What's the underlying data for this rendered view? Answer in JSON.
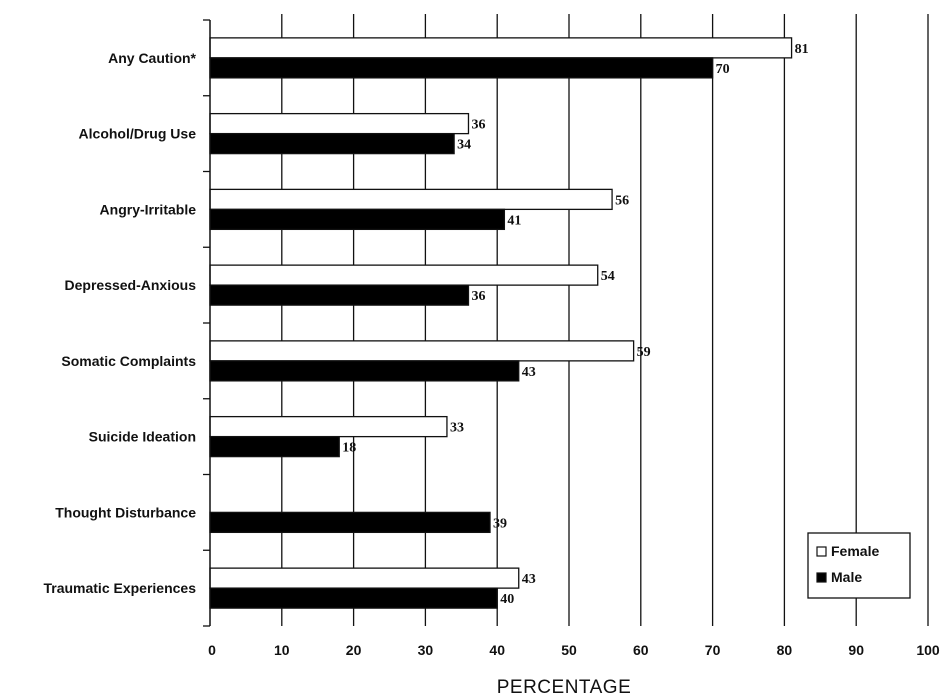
{
  "chart_data": {
    "type": "bar",
    "orientation": "horizontal",
    "title": "",
    "xlabel": "PERCENTAGE",
    "ylabel": "",
    "xlim": [
      0,
      100
    ],
    "x_ticks": [
      "0",
      "10",
      "20",
      "30",
      "40",
      "50",
      "60",
      "70",
      "80",
      "90",
      "100"
    ],
    "grid": "vertical",
    "legend_position": "bottom-right",
    "categories": [
      "Any Caution*",
      "Alcohol/Drug Use",
      "Angry-Irritable",
      "Depressed-Anxious",
      "Somatic Complaints",
      "Suicide Ideation",
      "Thought Disturbance",
      "Traumatic Experiences"
    ],
    "series": [
      {
        "name": "Female",
        "color": "#ffffff",
        "values": [
          81,
          36,
          56,
          54,
          59,
          33,
          null,
          43
        ],
        "labels": [
          "81",
          "36",
          "56",
          "54",
          "59",
          "33",
          "",
          "43"
        ]
      },
      {
        "name": "Male",
        "color": "#000000",
        "values": [
          70,
          34,
          41,
          36,
          43,
          18,
          39,
          40
        ],
        "labels": [
          "70",
          "34",
          "41",
          "36",
          "43",
          "18",
          "39",
          "40"
        ]
      }
    ]
  }
}
